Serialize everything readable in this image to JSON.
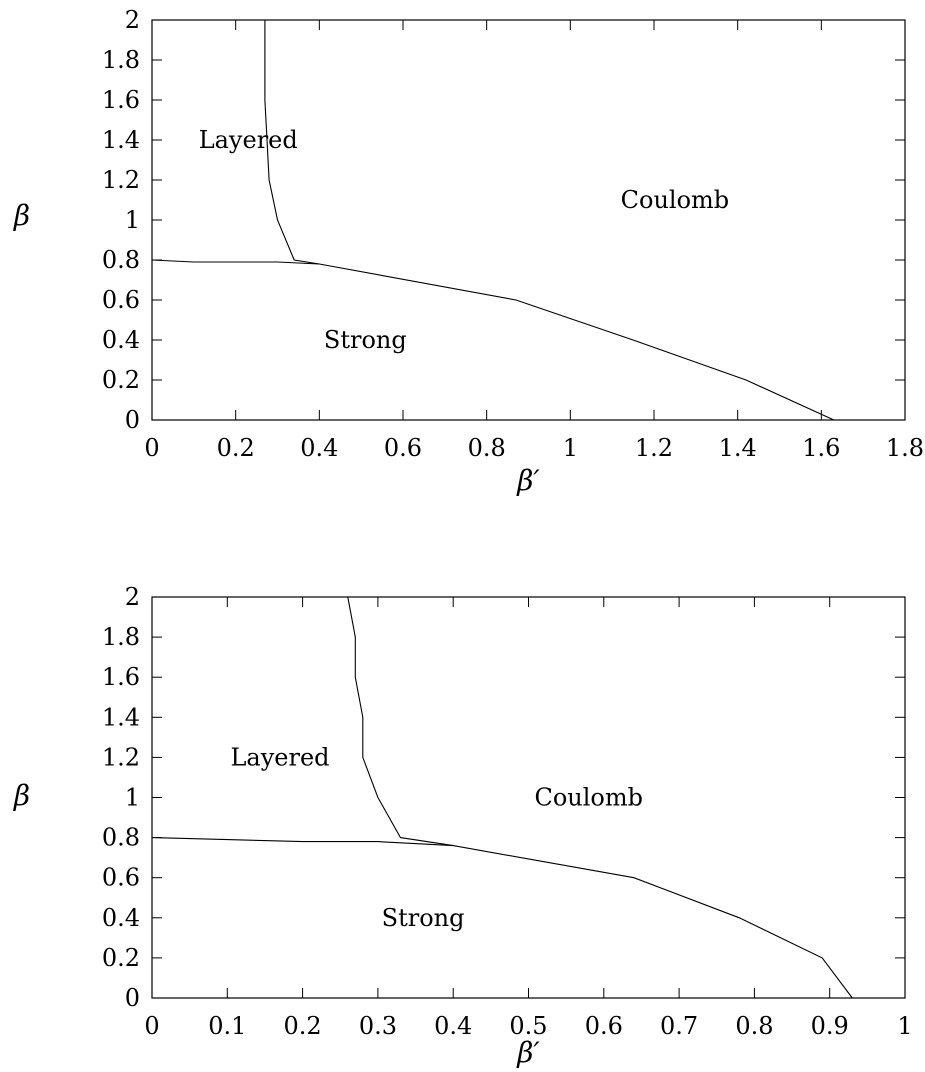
{
  "chart_data": [
    {
      "type": "line",
      "title": "",
      "xlabel": "β′",
      "ylabel": "β",
      "xlim": [
        0,
        1.8
      ],
      "ylim": [
        0,
        2
      ],
      "xticks": [
        "0",
        "0.2",
        "0.4",
        "0.6",
        "0.8",
        "1",
        "1.2",
        "1.4",
        "1.6",
        "1.8"
      ],
      "yticks": [
        "0",
        "0.2",
        "0.4",
        "0.6",
        "0.8",
        "1",
        "1.2",
        "1.4",
        "1.6",
        "1.8",
        "2"
      ],
      "grid": false,
      "series": [
        {
          "points": [
            [
              0.27,
              2.0
            ],
            [
              0.27,
              1.6
            ],
            [
              0.28,
              1.2
            ],
            [
              0.3,
              1.0
            ],
            [
              0.34,
              0.8
            ],
            [
              0.4,
              0.78
            ]
          ]
        },
        {
          "points": [
            [
              0.0,
              0.8
            ],
            [
              0.1,
              0.79
            ],
            [
              0.2,
              0.79
            ],
            [
              0.3,
              0.79
            ],
            [
              0.4,
              0.78
            ],
            [
              0.87,
              0.6
            ],
            [
              1.15,
              0.4
            ],
            [
              1.42,
              0.2
            ],
            [
              1.63,
              0.0
            ]
          ]
        }
      ],
      "annotations": [
        {
          "text": "Layered",
          "x": 0.23,
          "y": 1.4
        },
        {
          "text": "Coulomb",
          "x": 1.25,
          "y": 1.1
        },
        {
          "text": "Strong",
          "x": 0.51,
          "y": 0.4
        }
      ]
    },
    {
      "type": "line",
      "title": "",
      "xlabel": "β′",
      "ylabel": "β",
      "xlim": [
        0,
        1
      ],
      "ylim": [
        0,
        2
      ],
      "xticks": [
        "0",
        "0.1",
        "0.2",
        "0.3",
        "0.4",
        "0.5",
        "0.6",
        "0.7",
        "0.8",
        "0.9",
        "1"
      ],
      "yticks": [
        "0",
        "0.2",
        "0.4",
        "0.6",
        "0.8",
        "1",
        "1.2",
        "1.4",
        "1.6",
        "1.8",
        "2"
      ],
      "grid": false,
      "series": [
        {
          "points": [
            [
              0.26,
              2.0
            ],
            [
              0.27,
              1.8
            ],
            [
              0.27,
              1.6
            ],
            [
              0.28,
              1.4
            ],
            [
              0.28,
              1.2
            ],
            [
              0.3,
              1.0
            ],
            [
              0.33,
              0.8
            ],
            [
              0.4,
              0.76
            ]
          ]
        },
        {
          "points": [
            [
              0.0,
              0.8
            ],
            [
              0.1,
              0.79
            ],
            [
              0.2,
              0.78
            ],
            [
              0.3,
              0.78
            ],
            [
              0.4,
              0.76
            ],
            [
              0.64,
              0.6
            ],
            [
              0.78,
              0.4
            ],
            [
              0.89,
              0.2
            ],
            [
              0.93,
              0.0
            ]
          ]
        }
      ],
      "annotations": [
        {
          "text": "Layered",
          "x": 0.17,
          "y": 1.2
        },
        {
          "text": "Coulomb",
          "x": 0.58,
          "y": 1.0
        },
        {
          "text": "Strong",
          "x": 0.36,
          "y": 0.4
        }
      ]
    }
  ]
}
